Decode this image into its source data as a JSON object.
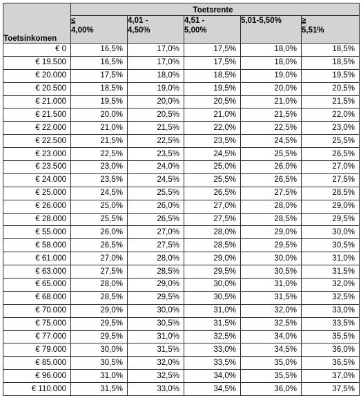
{
  "table": {
    "row_header": "Toetsinkomen",
    "group_header": "Toetsrente",
    "columns": [
      {
        "prefix": "≤",
        "text": " 4,00%"
      },
      {
        "line1": "4,01 -",
        "line2": "4,50%"
      },
      {
        "line1": "4,51 -",
        "line2": "5,00%"
      },
      {
        "line1": "5,01-5,50%"
      },
      {
        "prefix": "≥",
        "text": " 5,51%"
      }
    ],
    "rows": [
      {
        "income": "€ 0",
        "values": [
          "16,5%",
          "17,0%",
          "17,5%",
          "18,0%",
          "18,5%"
        ]
      },
      {
        "income": "€ 19.500",
        "values": [
          "16,5%",
          "17,0%",
          "17,5%",
          "18,0%",
          "18,5%"
        ]
      },
      {
        "income": "€ 20.000",
        "values": [
          "17,5%",
          "18,0%",
          "18,5%",
          "19,0%",
          "19,5%"
        ]
      },
      {
        "income": "€ 20.500",
        "values": [
          "18,5%",
          "19,0%",
          "19,5%",
          "20,0%",
          "20,5%"
        ]
      },
      {
        "income": "€ 21.000",
        "values": [
          "19,5%",
          "20,0%",
          "20,5%",
          "21,0%",
          "21,5%"
        ]
      },
      {
        "income": "€ 21.500",
        "values": [
          "20,0%",
          "20,5%",
          "21,0%",
          "21,5%",
          "22,0%"
        ]
      },
      {
        "income": "€ 22.000",
        "values": [
          "21,0%",
          "21,5%",
          "22,0%",
          "22,5%",
          "23,0%"
        ]
      },
      {
        "income": "€ 22.500",
        "values": [
          "21,5%",
          "22,5%",
          "23,5%",
          "24,5%",
          "25,5%"
        ]
      },
      {
        "income": "€ 23.000",
        "values": [
          "22,5%",
          "23,5%",
          "24,5%",
          "25,5%",
          "26,5%"
        ]
      },
      {
        "income": "€ 23.500",
        "values": [
          "23,0%",
          "24,0%",
          "25,0%",
          "26,0%",
          "27,0%"
        ]
      },
      {
        "income": "€ 24.000",
        "values": [
          "23,5%",
          "24,5%",
          "25,5%",
          "26,5%",
          "27,5%"
        ]
      },
      {
        "income": "€ 25.000",
        "values": [
          "24,5%",
          "25,5%",
          "26,5%",
          "27,5%",
          "28,5%"
        ]
      },
      {
        "income": "€ 26.000",
        "values": [
          "25,0%",
          "26,0%",
          "27,0%",
          "28,0%",
          "29,0%"
        ]
      },
      {
        "income": "€ 28.000",
        "values": [
          "25,5%",
          "26,5%",
          "27,5%",
          "28,5%",
          "29,5%"
        ]
      },
      {
        "income": "€ 55.000",
        "values": [
          "26,0%",
          "27,0%",
          "28,0%",
          "29,0%",
          "30,0%"
        ]
      },
      {
        "income": "€ 58.000",
        "values": [
          "26,5%",
          "27,5%",
          "28,5%",
          "29,5%",
          "30,5%"
        ]
      },
      {
        "income": "€ 61.000",
        "values": [
          "27,0%",
          "28,0%",
          "29,0%",
          "30,0%",
          "31,0%"
        ]
      },
      {
        "income": "€ 63.000",
        "values": [
          "27,5%",
          "28,5%",
          "29,5%",
          "30,5%",
          "31,5%"
        ]
      },
      {
        "income": "€ 65.000",
        "values": [
          "28,0%",
          "29,0%",
          "30,0%",
          "31,0%",
          "32,0%"
        ]
      },
      {
        "income": "€ 68.000",
        "values": [
          "28,5%",
          "29,5%",
          "30,5%",
          "31,5%",
          "32,5%"
        ]
      },
      {
        "income": "€ 70.000",
        "values": [
          "29,0%",
          "30,0%",
          "31,0%",
          "32,0%",
          "33,0%"
        ]
      },
      {
        "income": "€ 75.000",
        "values": [
          "29,5%",
          "30,5%",
          "31,5%",
          "32,5%",
          "33,5%"
        ]
      },
      {
        "income": "€ 77.000",
        "values": [
          "29,5%",
          "31,0%",
          "32,5%",
          "34,0%",
          "35,5%"
        ]
      },
      {
        "income": "€ 79.000",
        "values": [
          "30,0%",
          "31,5%",
          "33,0%",
          "34,5%",
          "36,0%"
        ]
      },
      {
        "income": "€ 85.000",
        "values": [
          "30,5%",
          "32,0%",
          "33,5%",
          "35,0%",
          "36,5%"
        ]
      },
      {
        "income": "€ 96.000",
        "values": [
          "31,0%",
          "32,5%",
          "34,0%",
          "35,5%",
          "37,0%"
        ]
      },
      {
        "income": "€ 110.000",
        "values": [
          "31,5%",
          "33,0%",
          "34,5%",
          "36,0%",
          "37,5%"
        ]
      }
    ]
  }
}
